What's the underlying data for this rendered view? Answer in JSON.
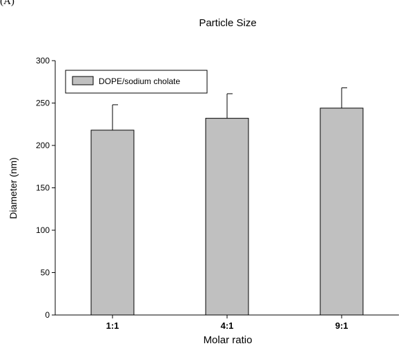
{
  "panel_label": "(A)",
  "chart_data": {
    "type": "bar",
    "title": "Particle Size",
    "xlabel": "Molar ratio",
    "ylabel": "Diameter (nm)",
    "categories": [
      "1:1",
      "4:1",
      "9:1"
    ],
    "series": [
      {
        "name": "DOPE/sodium cholate",
        "values": [
          218,
          232,
          244
        ],
        "errors": [
          30,
          29,
          24
        ],
        "color": "#c0c0c0"
      }
    ],
    "ylim": [
      0,
      300
    ],
    "yticks": [
      0,
      50,
      100,
      150,
      200,
      250,
      300
    ],
    "grid": false,
    "legend_position": "top-left"
  }
}
